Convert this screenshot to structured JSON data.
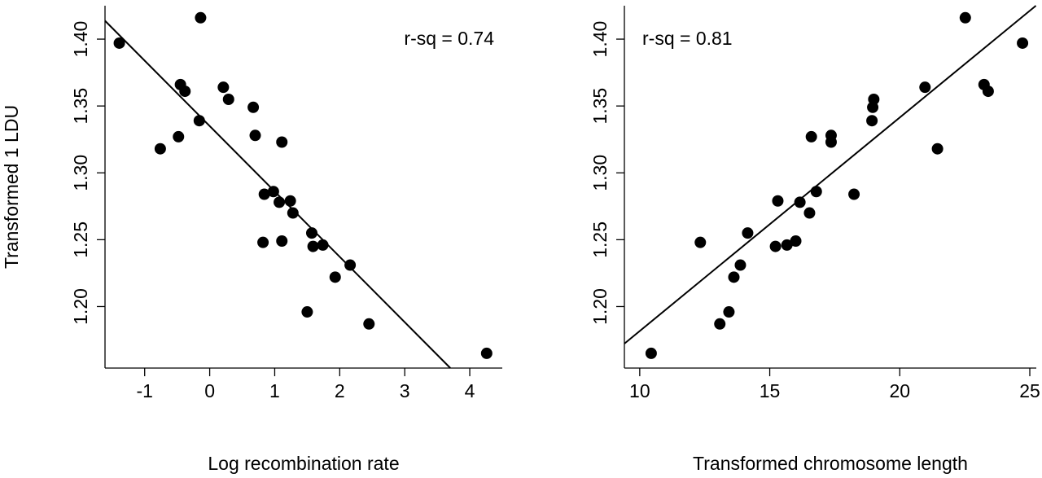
{
  "chart_data": [
    {
      "type": "scatter",
      "x_label": "Log recombination rate",
      "y_label": "Transformed 1 LDU",
      "annotation": "r-sq = 0.74",
      "color": "#000000",
      "xlim": [
        -1.61,
        4.5
      ],
      "ylim": [
        1.154,
        1.425
      ],
      "xticks": [
        -1,
        0,
        1,
        2,
        3,
        4
      ],
      "yticks": [
        {
          "value": 1.2,
          "label": "1.20"
        },
        {
          "value": 1.25,
          "label": "1.25"
        },
        {
          "value": 1.3,
          "label": "1.30"
        },
        {
          "value": 1.35,
          "label": "1.35"
        },
        {
          "value": 1.4,
          "label": "1.40"
        }
      ],
      "x": [
        -1.39,
        -0.14,
        -0.45,
        -0.38,
        -0.76,
        -0.48,
        -0.16,
        0.21,
        0.29,
        0.67,
        0.7,
        1.11,
        0.84,
        0.98,
        1.07,
        1.24,
        1.28,
        0.82,
        1.11,
        1.57,
        1.59,
        1.74,
        2.16,
        1.93,
        1.5,
        2.45,
        4.26
      ],
      "values": [
        1.397,
        1.416,
        1.366,
        1.361,
        1.318,
        1.327,
        1.339,
        1.364,
        1.355,
        1.349,
        1.328,
        1.323,
        1.284,
        1.286,
        1.278,
        1.279,
        1.27,
        1.248,
        1.249,
        1.255,
        1.245,
        1.246,
        1.231,
        1.222,
        1.196,
        1.187,
        1.165
      ],
      "fit": {
        "intercept": 1.335,
        "slope": -0.0489
      }
    },
    {
      "type": "scatter",
      "x_label": "Transformed chromosome length",
      "annotation": "r-sq = 0.81",
      "color": "#000000",
      "xlim": [
        9.41,
        25.25
      ],
      "ylim": [
        1.154,
        1.425
      ],
      "xticks": [
        10,
        15,
        20,
        25
      ],
      "yticks": [
        {
          "value": 1.2,
          "label": "1.20"
        },
        {
          "value": 1.25,
          "label": "1.25"
        },
        {
          "value": 1.3,
          "label": "1.30"
        },
        {
          "value": 1.35,
          "label": "1.35"
        },
        {
          "value": 1.4,
          "label": "1.40"
        }
      ],
      "x": [
        24.72,
        22.52,
        23.24,
        23.4,
        21.45,
        16.6,
        18.93,
        20.97,
        19.0,
        18.96,
        17.36,
        17.36,
        18.24,
        16.79,
        16.16,
        15.31,
        16.53,
        12.33,
        16.0,
        14.15,
        15.22,
        15.66,
        13.87,
        13.62,
        13.43,
        13.08,
        10.44
      ],
      "values": [
        1.397,
        1.416,
        1.366,
        1.361,
        1.318,
        1.327,
        1.339,
        1.364,
        1.355,
        1.349,
        1.328,
        1.323,
        1.284,
        1.286,
        1.278,
        1.279,
        1.27,
        1.248,
        1.249,
        1.255,
        1.245,
        1.246,
        1.231,
        1.222,
        1.196,
        1.187,
        1.165
      ],
      "fit": {
        "intercept": 1.022,
        "slope": 0.01597
      }
    }
  ]
}
